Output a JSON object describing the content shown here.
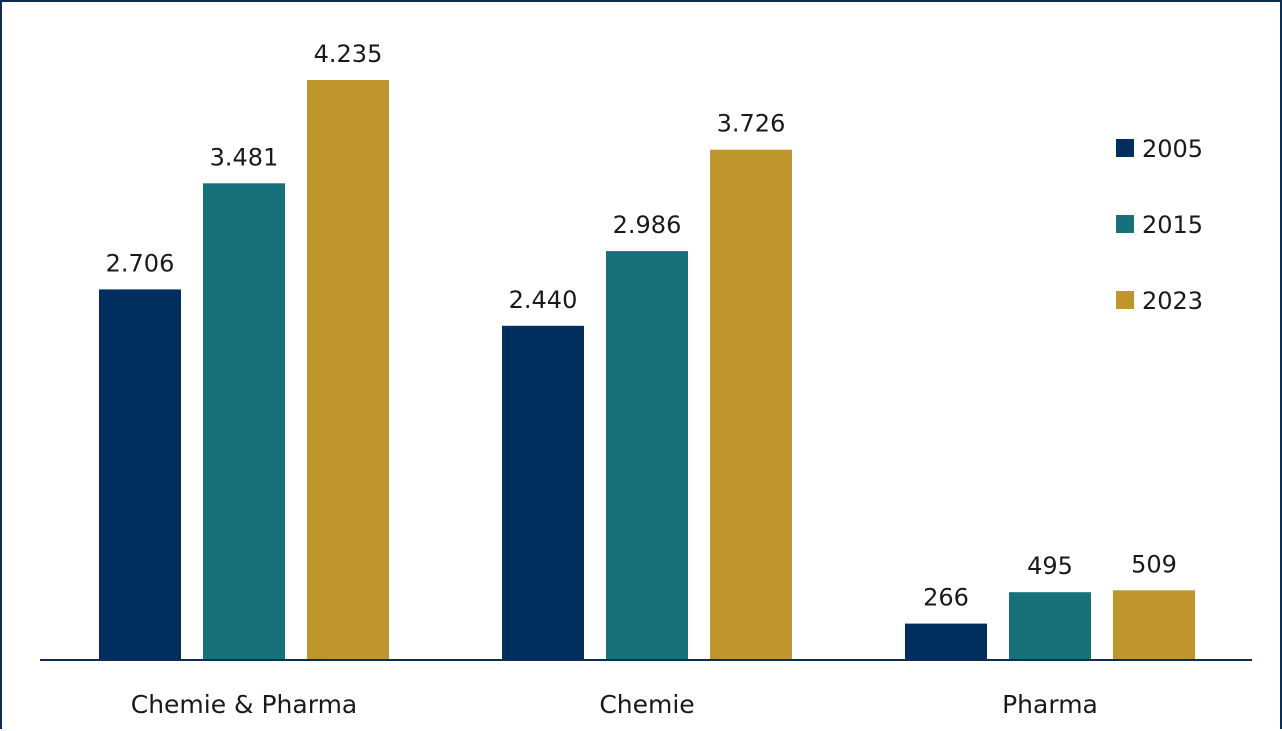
{
  "chart_data": {
    "type": "bar",
    "categories": [
      "Chemie & Pharma",
      "Chemie",
      "Pharma"
    ],
    "series": [
      {
        "name": "2005",
        "values": [
          2706,
          2440,
          266
        ],
        "labels": [
          "2.706",
          "2.440",
          "266"
        ],
        "color": "#002f5f"
      },
      {
        "name": "2015",
        "values": [
          3481,
          2986,
          495
        ],
        "labels": [
          "3.481",
          "2.986",
          "495"
        ],
        "color": "#17707a"
      },
      {
        "name": "2023",
        "values": [
          4235,
          3726,
          509
        ],
        "labels": [
          "4.235",
          "3.726",
          "509"
        ],
        "color": "#bf962b"
      }
    ],
    "title": "",
    "xlabel": "",
    "ylabel": "",
    "ylim": [
      0,
      4235
    ],
    "grid": false,
    "legend": "right",
    "axis_color": "#0d2d52"
  }
}
